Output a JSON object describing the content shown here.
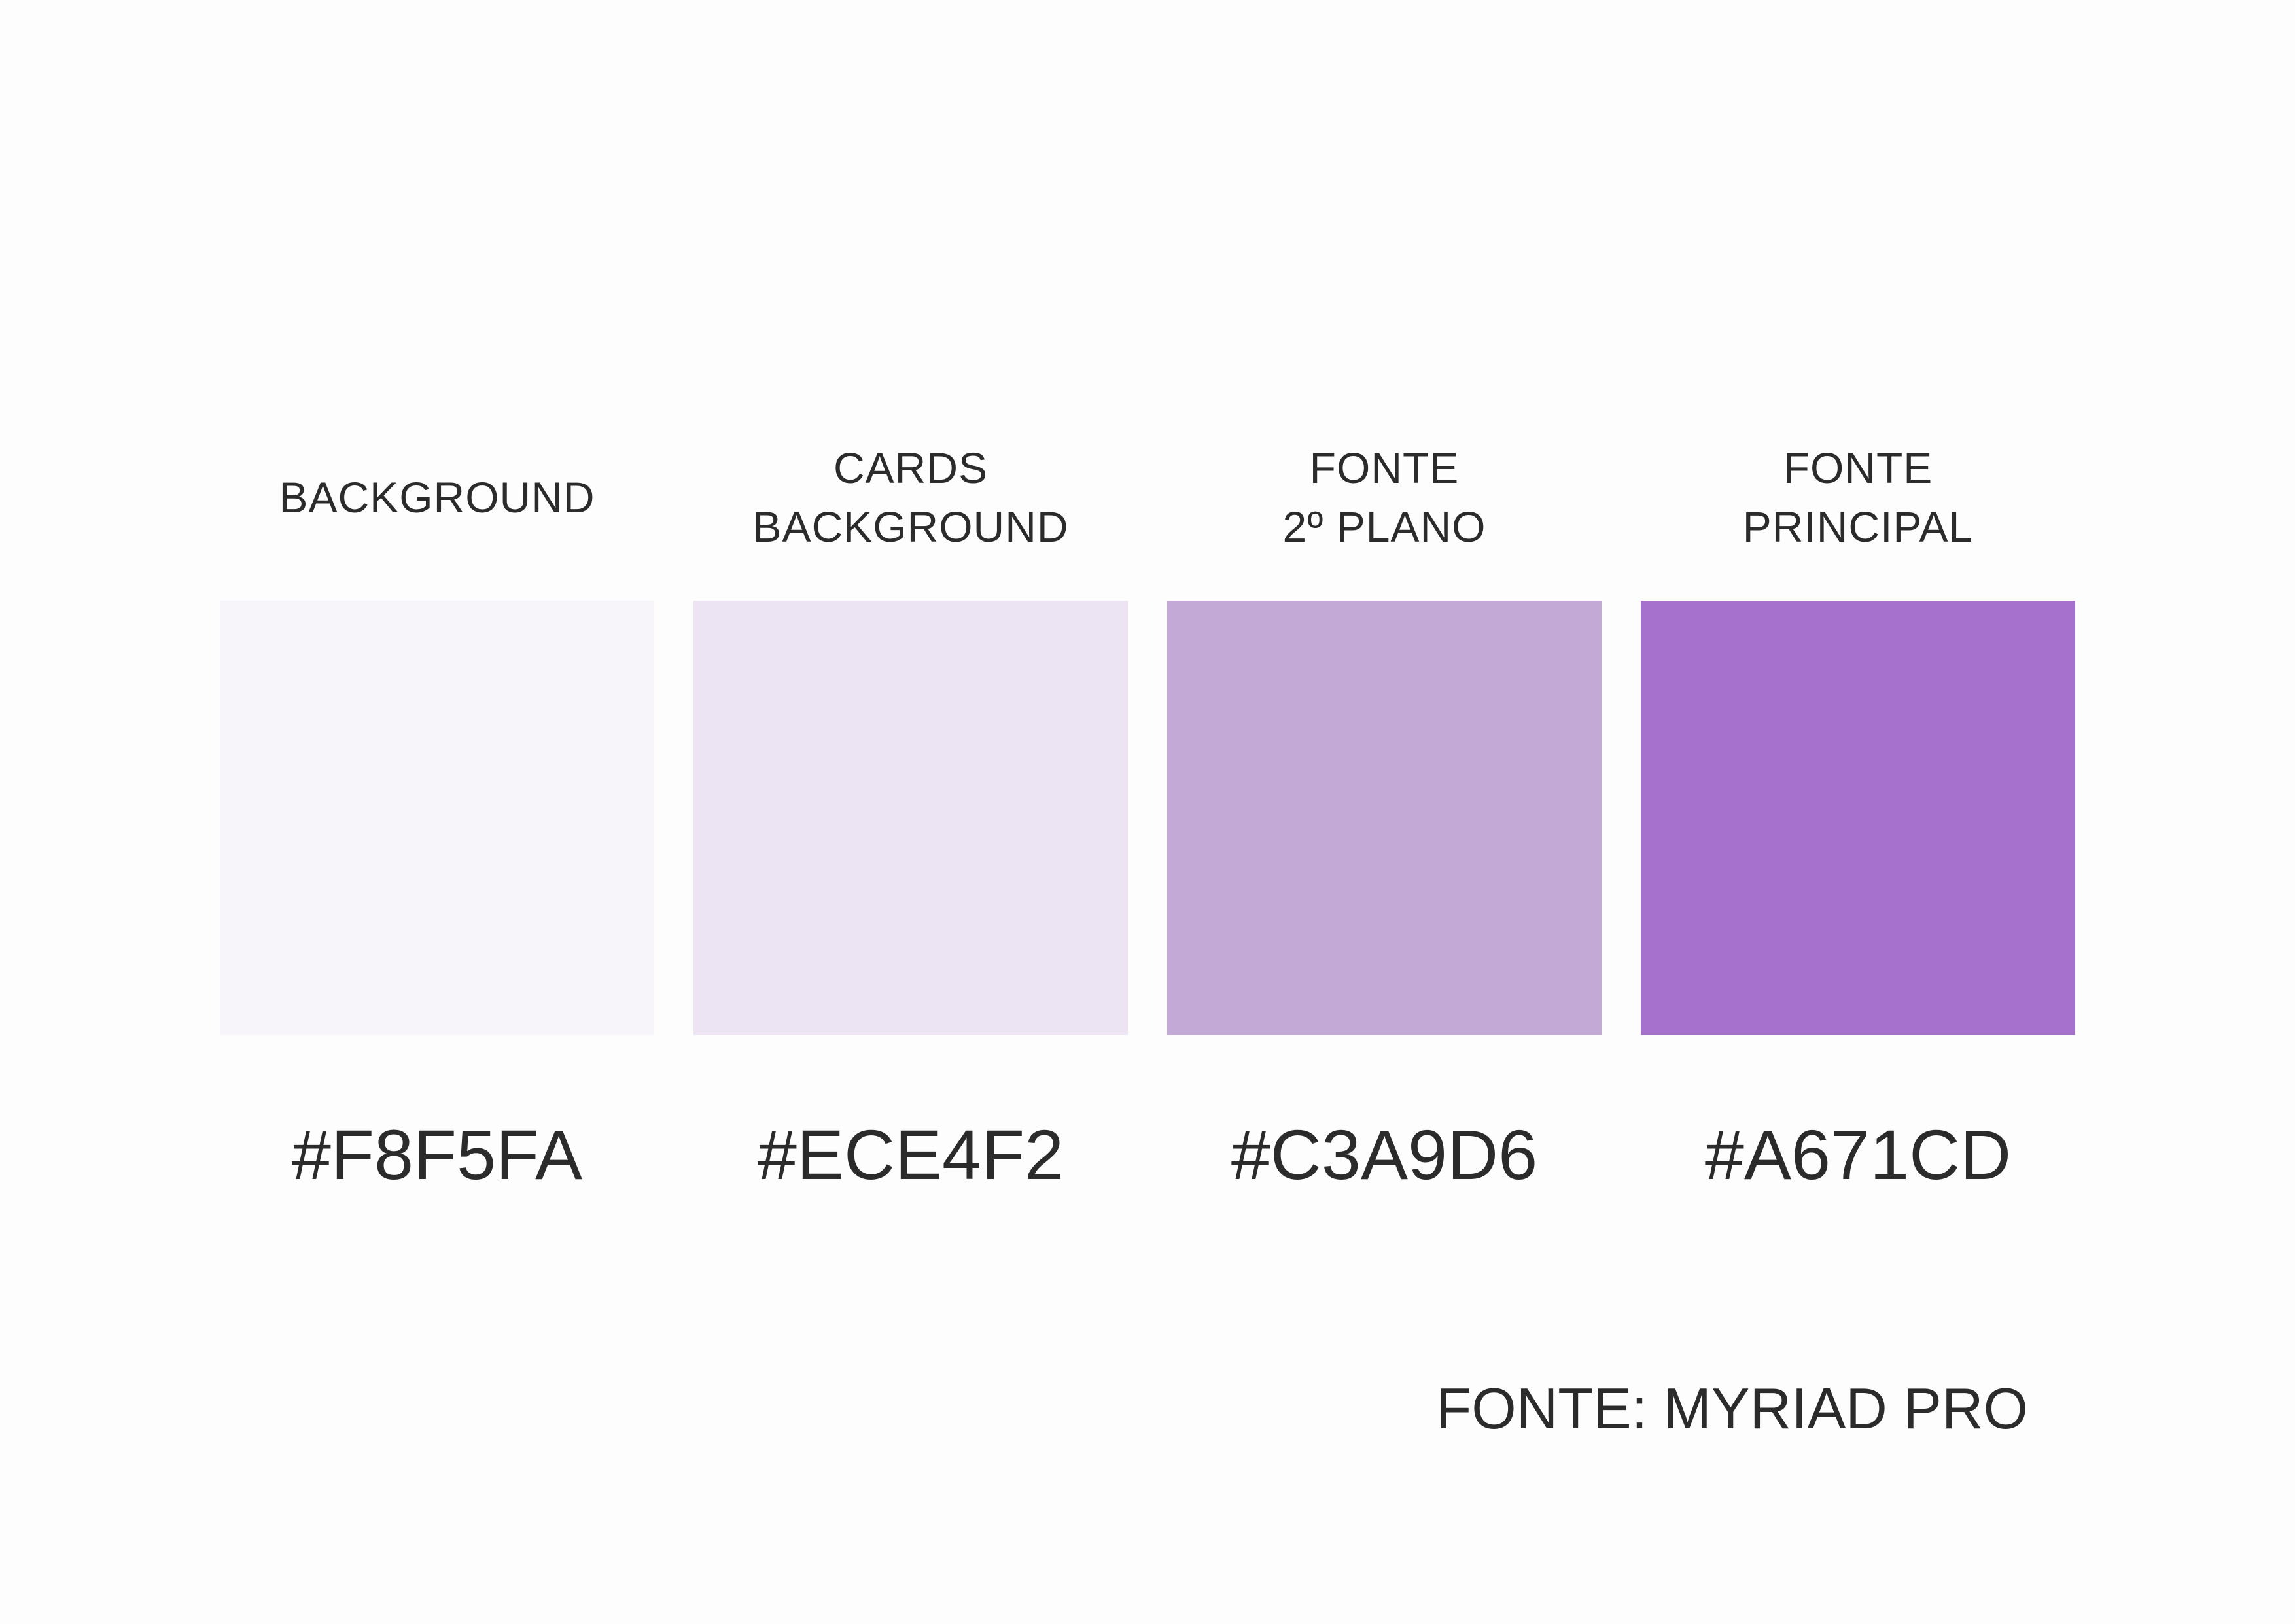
{
  "swatches": [
    {
      "label_lines": [
        "BACKGROUND"
      ],
      "hex": "#F8F5FA",
      "color": "#F8F5FA"
    },
    {
      "label_lines": [
        "CARDS",
        "BACKGROUND"
      ],
      "hex": "#ECE4F2",
      "color": "#ECE4F2"
    },
    {
      "label_lines": [
        "FONTE",
        "2º PLANO"
      ],
      "hex": "#C3A9D6",
      "color": "#C3A9D6"
    },
    {
      "label_lines": [
        "FONTE",
        "PRINCIPAL"
      ],
      "hex": "#A671CD",
      "color": "#A671CD"
    }
  ],
  "font_note": "FONTE: MYRIAD PRO",
  "colors": {
    "page_background": "#FDFDFD",
    "text": "#2B2B2B"
  }
}
